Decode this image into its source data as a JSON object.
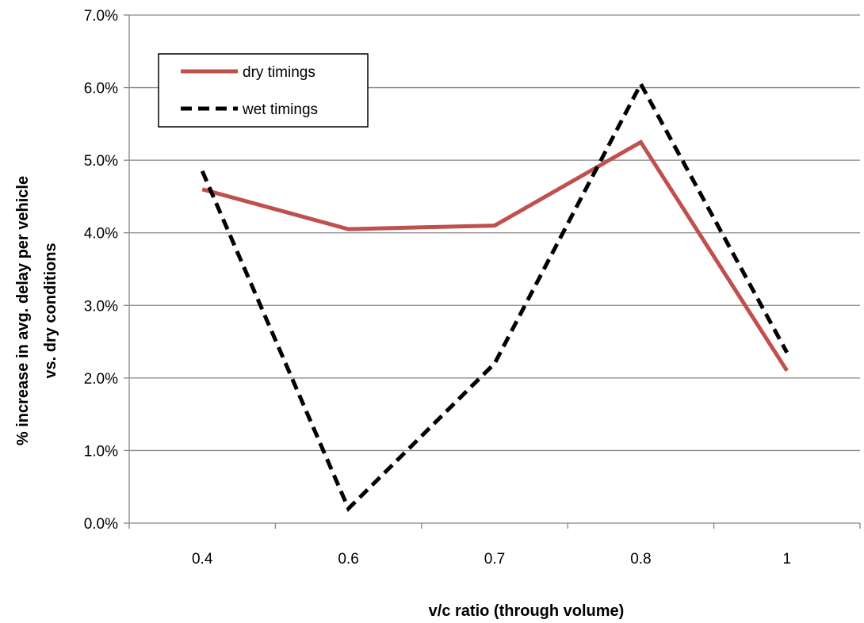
{
  "chart_data": {
    "type": "line",
    "categories": [
      "0.4",
      "0.6",
      "0.7",
      "0.8",
      "1"
    ],
    "series": [
      {
        "name": "dry timings",
        "values": [
          4.6,
          4.05,
          4.1,
          5.25,
          2.1
        ],
        "color": "#c0504d",
        "style": "solid"
      },
      {
        "name": "wet timings",
        "values": [
          4.85,
          0.2,
          2.2,
          6.05,
          2.35
        ],
        "color": "#000000",
        "style": "dashed"
      }
    ],
    "xlabel": "v/c ratio (through volume)",
    "ylabel_line1": "% increase in avg. delay per vehicle",
    "ylabel_line2": "vs. dry conditions",
    "ylim": [
      0,
      7
    ],
    "yticks": [
      "0.0%",
      "1.0%",
      "2.0%",
      "3.0%",
      "4.0%",
      "5.0%",
      "6.0%",
      "7.0%"
    ],
    "grid": "horizontal",
    "legend_position": "top-left"
  }
}
